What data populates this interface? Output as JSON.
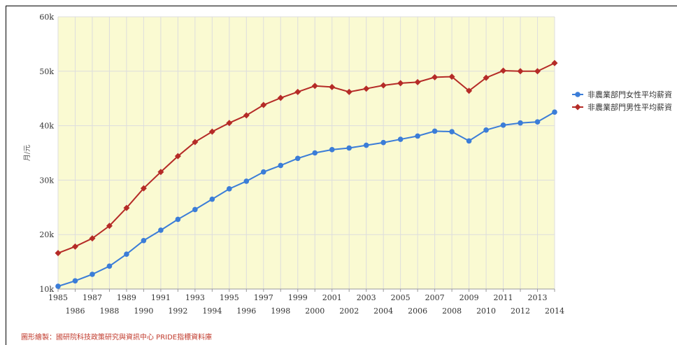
{
  "chart_data": {
    "type": "line",
    "title": "",
    "ylabel": "月/元",
    "ylim": [
      10000,
      60000
    ],
    "y_ticks": [
      "10k",
      "20k",
      "30k",
      "40k",
      "50k",
      "60k"
    ],
    "x": [
      1985,
      1986,
      1987,
      1988,
      1989,
      1990,
      1991,
      1992,
      1993,
      1994,
      1995,
      1996,
      1997,
      1998,
      1999,
      2000,
      2001,
      2002,
      2003,
      2004,
      2005,
      2006,
      2007,
      2008,
      2009,
      2010,
      2011,
      2012,
      2013,
      2014
    ],
    "series": [
      {
        "name": "非農業部門女性平均薪資",
        "color": "#3b7dd8",
        "values": [
          10500,
          11500,
          12700,
          14200,
          16400,
          18900,
          20800,
          22800,
          24600,
          26500,
          28400,
          29800,
          31500,
          32700,
          34000,
          35000,
          35600,
          35900,
          36400,
          36900,
          37500,
          38100,
          39000,
          38900,
          37200,
          39200,
          40100,
          40500,
          40700,
          42500
        ]
      },
      {
        "name": "非農業部門男性平均薪資",
        "color": "#b52b27",
        "values": [
          16600,
          17800,
          19300,
          21600,
          24900,
          28500,
          31500,
          34400,
          37000,
          38900,
          40500,
          41900,
          43800,
          45100,
          46200,
          47300,
          47100,
          46200,
          46800,
          47400,
          47800,
          48000,
          48900,
          49000,
          46400,
          48800,
          50100,
          50000,
          50000,
          51500
        ]
      }
    ],
    "legend_position": "right",
    "grid": true,
    "plot_bg": "#fafad2"
  },
  "credit": "圖形繪製：國研院科技政策研究與資訊中心 PRIDE指標資料庫"
}
